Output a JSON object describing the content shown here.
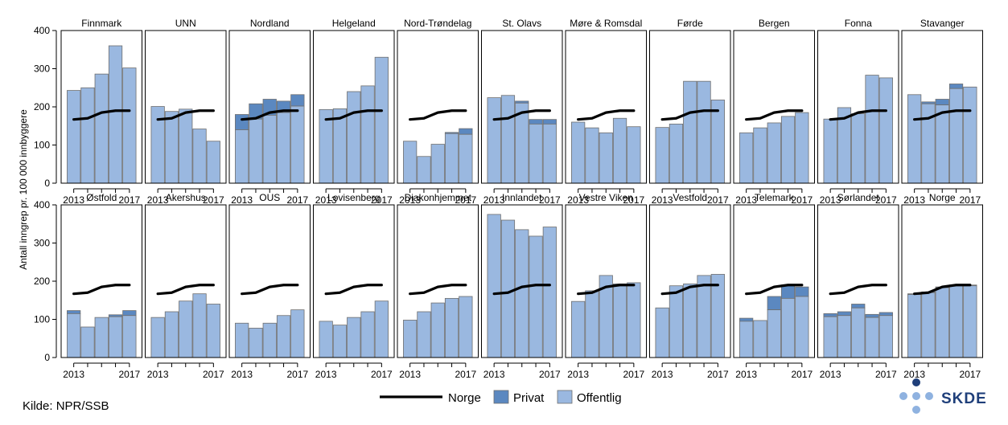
{
  "chart_data": {
    "type": "bar",
    "ylabel": "Antall inngrep pr. 100 000 innbyggere",
    "ylim": [
      0,
      400
    ],
    "yticks": [
      0,
      100,
      200,
      300,
      400
    ],
    "years": [
      2013,
      2014,
      2015,
      2016,
      2017
    ],
    "xtick_labels": [
      "2013",
      "2017"
    ],
    "legend": [
      {
        "name": "Norge",
        "kind": "line"
      },
      {
        "name": "Privat",
        "kind": "bar"
      },
      {
        "name": "Offentlig",
        "kind": "bar"
      }
    ],
    "norge": [
      167,
      170,
      185,
      190,
      190
    ],
    "panels": [
      {
        "name": "Finnmark",
        "offentlig": [
          243,
          250,
          286,
          360,
          302
        ],
        "privat": [
          0,
          0,
          0,
          0,
          0
        ]
      },
      {
        "name": "UNN",
        "offentlig": [
          201,
          188,
          194,
          142,
          110
        ],
        "privat": [
          0,
          0,
          0,
          0,
          0
        ]
      },
      {
        "name": "Nordland",
        "offentlig": [
          140,
          168,
          178,
          185,
          202
        ],
        "privat": [
          40,
          40,
          42,
          30,
          30
        ]
      },
      {
        "name": "Helgeland",
        "offentlig": [
          193,
          195,
          240,
          255,
          330
        ],
        "privat": [
          0,
          0,
          0,
          0,
          0
        ]
      },
      {
        "name": "Nord-Trøndelag",
        "offentlig": [
          110,
          70,
          102,
          130,
          128
        ],
        "privat": [
          0,
          0,
          0,
          3,
          15
        ]
      },
      {
        "name": "St. Olavs",
        "offentlig": [
          224,
          230,
          210,
          155,
          155
        ],
        "privat": [
          0,
          0,
          5,
          12,
          12
        ]
      },
      {
        "name": "Møre & Romsdal",
        "offentlig": [
          160,
          145,
          132,
          170,
          148
        ],
        "privat": [
          0,
          0,
          0,
          0,
          0
        ]
      },
      {
        "name": "Førde",
        "offentlig": [
          146,
          155,
          267,
          267,
          218
        ],
        "privat": [
          0,
          0,
          0,
          0,
          0
        ]
      },
      {
        "name": "Bergen",
        "offentlig": [
          132,
          145,
          158,
          175,
          185
        ],
        "privat": [
          0,
          0,
          0,
          0,
          0
        ]
      },
      {
        "name": "Fonna",
        "offentlig": [
          168,
          198,
          182,
          283,
          276
        ],
        "privat": [
          0,
          0,
          0,
          0,
          0
        ]
      },
      {
        "name": "Stavanger",
        "offentlig": [
          232,
          208,
          205,
          248,
          252
        ],
        "privat": [
          0,
          5,
          15,
          12,
          0
        ]
      },
      {
        "name": "Østfold",
        "offentlig": [
          115,
          80,
          105,
          107,
          110
        ],
        "privat": [
          8,
          0,
          0,
          5,
          13
        ]
      },
      {
        "name": "Akershus",
        "offentlig": [
          105,
          120,
          148,
          167,
          140
        ],
        "privat": [
          0,
          0,
          0,
          0,
          0
        ]
      },
      {
        "name": "OUS",
        "offentlig": [
          90,
          77,
          90,
          110,
          125
        ],
        "privat": [
          0,
          0,
          0,
          0,
          0
        ]
      },
      {
        "name": "Lovisenberg",
        "offentlig": [
          95,
          85,
          105,
          120,
          148
        ],
        "privat": [
          0,
          0,
          0,
          0,
          0
        ]
      },
      {
        "name": "Diakonhjemmet",
        "offentlig": [
          98,
          120,
          143,
          155,
          160
        ],
        "privat": [
          0,
          0,
          0,
          0,
          0
        ]
      },
      {
        "name": "Innlandet",
        "offentlig": [
          375,
          360,
          335,
          318,
          342
        ],
        "privat": [
          0,
          0,
          0,
          0,
          0
        ]
      },
      {
        "name": "Vestre Viken",
        "offentlig": [
          147,
          175,
          215,
          193,
          196
        ],
        "privat": [
          0,
          0,
          0,
          0,
          0
        ]
      },
      {
        "name": "Vestfold",
        "offentlig": [
          130,
          188,
          193,
          215,
          218
        ],
        "privat": [
          0,
          0,
          0,
          0,
          0
        ]
      },
      {
        "name": "Telemark",
        "offentlig": [
          95,
          97,
          125,
          155,
          160
        ],
        "privat": [
          8,
          0,
          35,
          35,
          25
        ]
      },
      {
        "name": "Sørlandet",
        "offentlig": [
          107,
          110,
          130,
          105,
          110
        ],
        "privat": [
          8,
          10,
          10,
          8,
          8
        ]
      },
      {
        "name": "Norge",
        "offentlig": [
          165,
          170,
          183,
          188,
          188
        ],
        "privat": [
          2,
          2,
          2,
          2,
          2
        ]
      }
    ]
  },
  "footer": {
    "source": "Kilde: NPR/SSB",
    "logo_text": "SKDE"
  },
  "colors": {
    "offentlig": "#9ab8e0",
    "privat": "#5b88c0",
    "norge_line": "#000000",
    "bar_border": "#6f6f6f",
    "logo": "#1f3f7a"
  }
}
